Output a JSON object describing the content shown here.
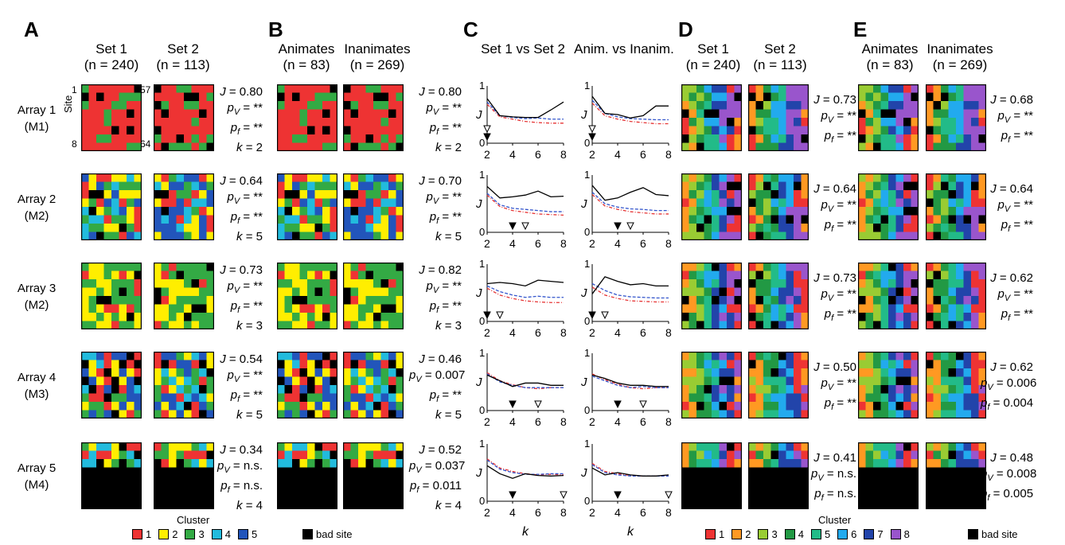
{
  "panels": {
    "A": "A",
    "B": "B",
    "C": "C",
    "D": "D",
    "E": "E"
  },
  "headers": {
    "A": [
      {
        "name": "Set 1",
        "n": "(n = 240)"
      },
      {
        "name": "Set 2",
        "n": "(n = 113)"
      }
    ],
    "B": [
      {
        "name": "Animates",
        "n": "(n = 83)"
      },
      {
        "name": "Inanimates",
        "n": "(n = 269)"
      }
    ],
    "C": [
      {
        "name": "Set 1 vs Set 2"
      },
      {
        "name": "Anim. vs Inanim."
      }
    ],
    "D": [
      {
        "name": "Set 1",
        "n": "(n = 240)"
      },
      {
        "name": "Set 2",
        "n": "(n = 113)"
      }
    ],
    "E": [
      {
        "name": "Animates",
        "n": "(n = 83)"
      },
      {
        "name": "Inanimates",
        "n": "(n = 269)"
      }
    ]
  },
  "site_labels": {
    "site": "Site",
    "tl": "1",
    "bl": "8",
    "tr": "57",
    "br": "64"
  },
  "rows": [
    {
      "array": "Array 1",
      "monkey": "(M1)"
    },
    {
      "array": "Array 2",
      "monkey": "(M2)"
    },
    {
      "array": "Array 3",
      "monkey": "(M2)"
    },
    {
      "array": "Array 4",
      "monkey": "(M3)"
    },
    {
      "array": "Array 5",
      "monkey": "(M4)"
    }
  ],
  "stats": {
    "A": [
      {
        "J": "0.80",
        "pv": "**",
        "pf": "**",
        "k": "2"
      },
      {
        "J": "0.64",
        "pv": "**",
        "pf": "**",
        "k": "5"
      },
      {
        "J": "0.73",
        "pv": "**",
        "pf": "**",
        "k": "3"
      },
      {
        "J": "0.54",
        "pv": "**",
        "pf": "**",
        "k": "5"
      },
      {
        "J": "0.34",
        "pv": "n.s.",
        "pf": "n.s.",
        "k": "4"
      }
    ],
    "B": [
      {
        "J": "0.80",
        "pv": "**",
        "pf": "**",
        "k": "2"
      },
      {
        "J": "0.70",
        "pv": "**",
        "pf": "**",
        "k": "5"
      },
      {
        "J": "0.82",
        "pv": "**",
        "pf": "**",
        "k": "3"
      },
      {
        "J": "0.46",
        "pv": "0.007",
        "pf": "**",
        "k": "5"
      },
      {
        "J": "0.52",
        "pv": "0.037",
        "pf": "0.011",
        "k": "4"
      }
    ],
    "D": [
      {
        "J": "0.73",
        "pv": "**",
        "pf": "**"
      },
      {
        "J": "0.64",
        "pv": "**",
        "pf": "**"
      },
      {
        "J": "0.73",
        "pv": "**",
        "pf": "**"
      },
      {
        "J": "0.50",
        "pv": "**",
        "pf": "**"
      },
      {
        "J": "0.41",
        "pv": "n.s.",
        "pf": "n.s."
      }
    ],
    "E": [
      {
        "J": "0.68",
        "pv": "**",
        "pf": "**"
      },
      {
        "J": "0.64",
        "pv": "**",
        "pf": "**"
      },
      {
        "J": "0.62",
        "pv": "**",
        "pf": "**"
      },
      {
        "J": "0.62",
        "pv": "0.006",
        "pf": "0.004"
      },
      {
        "J": "0.48",
        "pv": "0.008",
        "pf": "0.005"
      }
    ]
  },
  "stat_labels": {
    "J": "J",
    "eq": " = ",
    "pv": "p",
    "pv_sub": "V",
    "pf": "p",
    "pf_sub": "f",
    "k": "k"
  },
  "chart_data": [
    {
      "type": "line",
      "panel": "C",
      "x": [
        2,
        3,
        4,
        5,
        6,
        7,
        8
      ],
      "xticks": [
        "2",
        "4",
        "6",
        "8"
      ],
      "yticks": [
        "0",
        "1"
      ],
      "ylabel": "J",
      "xlabel": "k",
      "ylim": [
        0,
        1
      ],
      "columns": [
        {
          "rows": [
            {
              "black": [
                0.78,
                0.48,
                0.46,
                0.45,
                0.45,
                0.58,
                0.72
              ],
              "blue": [
                0.72,
                0.48,
                0.45,
                0.43,
                0.44,
                0.42,
                0.42
              ],
              "red": [
                0.68,
                0.46,
                0.42,
                0.38,
                0.36,
                0.35,
                0.35
              ],
              "filled": 2,
              "open": 2
            },
            {
              "black": [
                0.8,
                0.6,
                0.62,
                0.65,
                0.72,
                0.62,
                0.63
              ],
              "blue": [
                0.68,
                0.48,
                0.42,
                0.4,
                0.38,
                0.36,
                0.36
              ],
              "red": [
                0.65,
                0.45,
                0.38,
                0.35,
                0.32,
                0.31,
                0.3
              ],
              "filled": 4,
              "open": 5
            },
            {
              "black": [
                0.66,
                0.68,
                0.66,
                0.62,
                0.72,
                0.7,
                0.68
              ],
              "blue": [
                0.62,
                0.52,
                0.46,
                0.42,
                0.44,
                0.42,
                0.42
              ],
              "red": [
                0.58,
                0.46,
                0.4,
                0.36,
                0.34,
                0.33,
                0.33
              ],
              "filled": 2,
              "open": 3
            },
            {
              "black": [
                0.62,
                0.52,
                0.42,
                0.48,
                0.48,
                0.44,
                0.44
              ],
              "blue": [
                0.64,
                0.5,
                0.44,
                0.4,
                0.4,
                0.4,
                0.4
              ],
              "red": [
                0.66,
                0.52,
                0.45,
                0.4,
                0.38,
                0.4,
                0.4
              ],
              "filled": 4,
              "open": 6
            },
            {
              "black": [
                0.62,
                0.48,
                0.4,
                0.48,
                0.45,
                0.44,
                0.45
              ],
              "blue": [
                0.72,
                0.56,
                0.5,
                0.47,
                0.47,
                0.48,
                0.48
              ],
              "red": [
                0.74,
                0.58,
                0.52,
                0.48,
                0.46,
                0.47,
                0.46
              ],
              "filled": 4,
              "open": 8
            }
          ]
        },
        {
          "rows": [
            {
              "black": [
                0.82,
                0.52,
                0.5,
                0.44,
                0.48,
                0.65,
                0.65
              ],
              "blue": [
                0.75,
                0.52,
                0.46,
                0.43,
                0.42,
                0.41,
                0.41
              ],
              "red": [
                0.7,
                0.48,
                0.42,
                0.38,
                0.36,
                0.34,
                0.34
              ],
              "filled": 2,
              "open": 2
            },
            {
              "black": [
                0.82,
                0.56,
                0.6,
                0.7,
                0.78,
                0.66,
                0.64
              ],
              "blue": [
                0.7,
                0.5,
                0.44,
                0.41,
                0.4,
                0.38,
                0.38
              ],
              "red": [
                0.66,
                0.46,
                0.4,
                0.36,
                0.34,
                0.32,
                0.32
              ],
              "filled": 4,
              "open": 5
            },
            {
              "black": [
                0.48,
                0.78,
                0.7,
                0.64,
                0.66,
                0.62,
                0.62
              ],
              "blue": [
                0.66,
                0.54,
                0.46,
                0.43,
                0.42,
                0.41,
                0.41
              ],
              "red": [
                0.6,
                0.46,
                0.4,
                0.36,
                0.35,
                0.34,
                0.34
              ],
              "filled": 2,
              "open": 3
            },
            {
              "black": [
                0.62,
                0.56,
                0.48,
                0.44,
                0.44,
                0.42,
                0.42
              ],
              "blue": [
                0.6,
                0.52,
                0.44,
                0.4,
                0.42,
                0.4,
                0.4
              ],
              "red": [
                0.64,
                0.54,
                0.46,
                0.4,
                0.38,
                0.4,
                0.4
              ],
              "filled": 4,
              "open": 6
            },
            {
              "black": [
                0.58,
                0.46,
                0.5,
                0.46,
                0.44,
                0.44,
                0.46
              ],
              "blue": [
                0.64,
                0.5,
                0.46,
                0.44,
                0.44,
                0.44,
                0.44
              ],
              "red": [
                0.66,
                0.52,
                0.48,
                0.45,
                0.44,
                0.44,
                0.44
              ],
              "filled": 4,
              "open": 8
            }
          ]
        }
      ]
    }
  ],
  "legend_left": {
    "title": "Cluster",
    "items": [
      {
        "label": "1",
        "color": "#ee3333"
      },
      {
        "label": "2",
        "color": "#ffee00"
      },
      {
        "label": "3",
        "color": "#33aa44"
      },
      {
        "label": "4",
        "color": "#22bbdd"
      },
      {
        "label": "5",
        "color": "#2255bb"
      }
    ],
    "bad": "bad site"
  },
  "legend_right": {
    "title": "Cluster",
    "items": [
      {
        "label": "1",
        "color": "#ee3333"
      },
      {
        "label": "2",
        "color": "#ff9922"
      },
      {
        "label": "3",
        "color": "#99cc33"
      },
      {
        "label": "4",
        "color": "#229944"
      },
      {
        "label": "5",
        "color": "#22bb88"
      },
      {
        "label": "6",
        "color": "#22aaee"
      },
      {
        "label": "7",
        "color": "#2244aa"
      },
      {
        "label": "8",
        "color": "#9955cc"
      }
    ],
    "bad": "bad site"
  }
}
